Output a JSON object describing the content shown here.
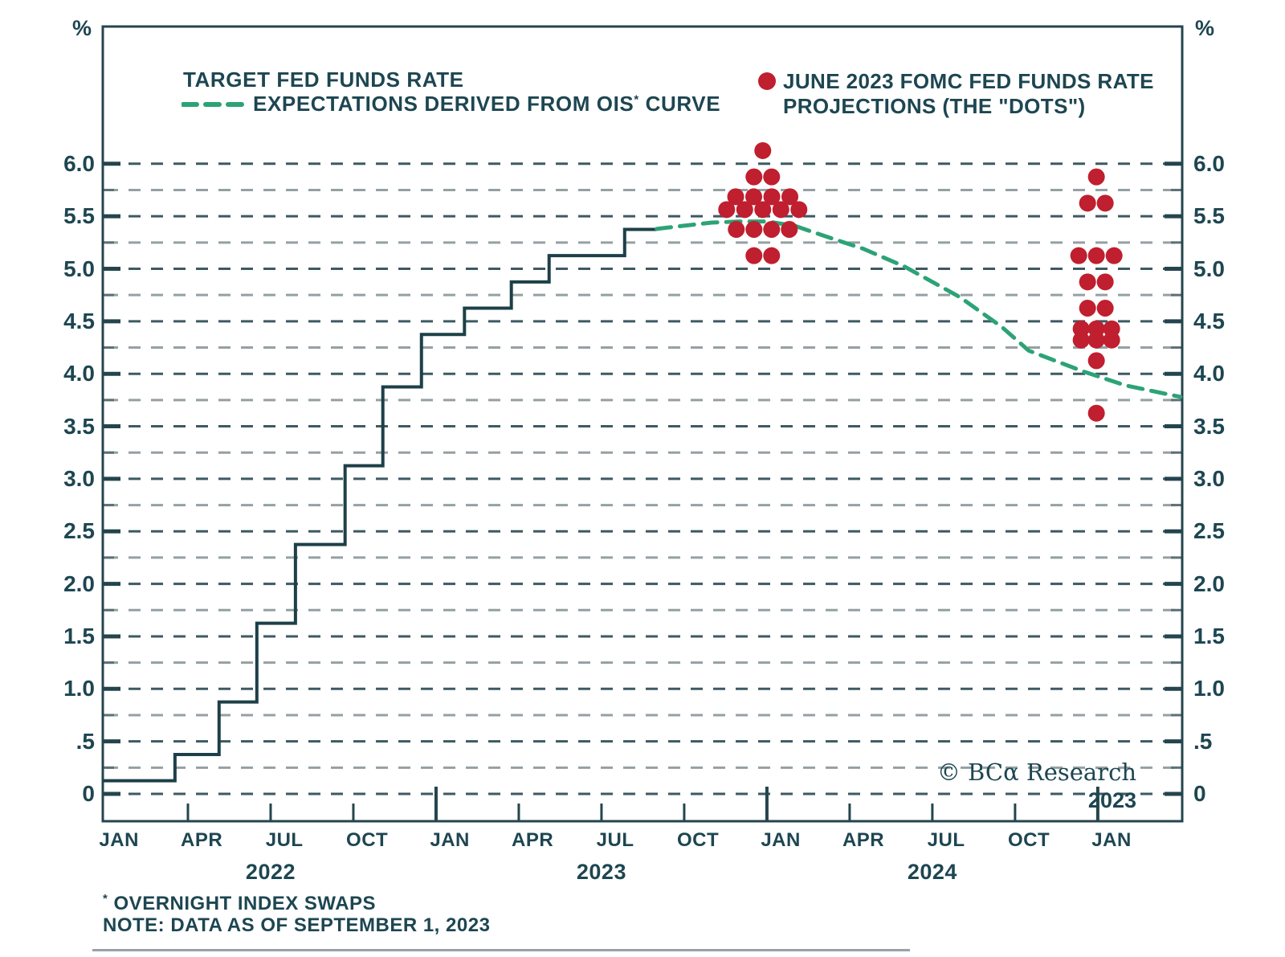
{
  "colors": {
    "text": "#1d4651",
    "border": "#24454d",
    "grid_major": "#3d5a62",
    "grid_minor": "#95a0a4",
    "step_line": "#1d4048",
    "ois_line": "#2ca377",
    "dots": "#bf1f2e",
    "background": "#ffffff"
  },
  "axes": {
    "percent_left": "%",
    "percent_right": "%",
    "y_ticks": [
      {
        "v": 6.0,
        "label": "6.0"
      },
      {
        "v": 5.5,
        "label": "5.5"
      },
      {
        "v": 5.0,
        "label": "5.0"
      },
      {
        "v": 4.5,
        "label": "4.5"
      },
      {
        "v": 4.0,
        "label": "4.0"
      },
      {
        "v": 3.5,
        "label": "3.5"
      },
      {
        "v": 3.0,
        "label": "3.0"
      },
      {
        "v": 2.5,
        "label": "2.5"
      },
      {
        "v": 2.0,
        "label": "2.0"
      },
      {
        "v": 1.5,
        "label": "1.5"
      },
      {
        "v": 1.0,
        "label": "1.0"
      },
      {
        "v": 0.5,
        "label": ".5"
      },
      {
        "v": 0.0,
        "label": "0"
      }
    ],
    "x_month_labels": [
      {
        "m": 0.5,
        "label": "JAN"
      },
      {
        "m": 3.5,
        "label": "APR"
      },
      {
        "m": 6.5,
        "label": "JUL"
      },
      {
        "m": 9.5,
        "label": "OCT"
      },
      {
        "m": 12.5,
        "label": "JAN"
      },
      {
        "m": 15.5,
        "label": "APR"
      },
      {
        "m": 18.5,
        "label": "JUL"
      },
      {
        "m": 21.5,
        "label": "OCT"
      },
      {
        "m": 24.5,
        "label": "JAN"
      },
      {
        "m": 27.5,
        "label": "APR"
      },
      {
        "m": 30.5,
        "label": "JUL"
      },
      {
        "m": 33.5,
        "label": "OCT"
      },
      {
        "m": 36.5,
        "label": "JAN"
      }
    ],
    "x_year_labels": [
      {
        "m": 6,
        "label": "2022"
      },
      {
        "m": 18,
        "label": "2023"
      },
      {
        "m": 30,
        "label": "2024"
      }
    ],
    "x_quarter_tick_months": [
      3,
      6,
      9,
      15,
      18,
      21,
      27,
      30,
      33
    ],
    "x_year_tick_months": [
      12,
      24,
      36
    ]
  },
  "legend": {
    "target_label": "TARGET FED FUNDS RATE",
    "ois_pre": "EXPECTATIONS DERIVED FROM OIS",
    "ois_sup": "*",
    "ois_post": " CURVE",
    "dots_line1": "JUNE 2023 FOMC FED FUNDS RATE",
    "dots_line2": "PROJECTIONS (THE \"DOTS\")"
  },
  "copyright": {
    "text": "© BCα Research ",
    "year": "2023"
  },
  "footnotes": {
    "fn1_sup": "*",
    "fn1_text": " OVERNIGHT INDEX SWAPS",
    "fn2": "NOTE: DATA AS OF SEPTEMBER 1, 2023"
  },
  "chart_data": {
    "type": "line",
    "title": "",
    "xlabel": "",
    "ylabel": "%",
    "ylim": [
      0,
      6.25
    ],
    "y_gridline_step": 0.25,
    "x_domain_months_from_jan2022": [
      0,
      39
    ],
    "grid": "dashed horizontal",
    "legend_position": "top-inside",
    "series": [
      {
        "name": "TARGET FED FUNDS RATE",
        "type": "step",
        "points": [
          {
            "date": "2022-01-01",
            "m": 0.0,
            "v": 0.125
          },
          {
            "date": "2022-03-17",
            "m": 2.53,
            "v": 0.375
          },
          {
            "date": "2022-05-05",
            "m": 4.13,
            "v": 0.875
          },
          {
            "date": "2022-06-16",
            "m": 5.5,
            "v": 1.625
          },
          {
            "date": "2022-07-28",
            "m": 6.9,
            "v": 2.375
          },
          {
            "date": "2022-09-22",
            "m": 8.7,
            "v": 3.125
          },
          {
            "date": "2022-11-03",
            "m": 10.07,
            "v": 3.875
          },
          {
            "date": "2022-12-15",
            "m": 11.47,
            "v": 4.375
          },
          {
            "date": "2023-02-02",
            "m": 13.03,
            "v": 4.625
          },
          {
            "date": "2023-03-23",
            "m": 14.73,
            "v": 4.875
          },
          {
            "date": "2023-05-04",
            "m": 16.1,
            "v": 5.125
          },
          {
            "date": "2023-07-27",
            "m": 18.84,
            "v": 5.375
          },
          {
            "date": "2023-09-01",
            "m": 20.0,
            "v": 5.375
          }
        ]
      },
      {
        "name": "EXPECTATIONS DERIVED FROM OIS* CURVE",
        "type": "dashed-line",
        "points": [
          {
            "m": 20.0,
            "v": 5.38
          },
          {
            "m": 21.0,
            "v": 5.41
          },
          {
            "m": 22.0,
            "v": 5.44
          },
          {
            "m": 23.0,
            "v": 5.45
          },
          {
            "m": 24.0,
            "v": 5.45
          },
          {
            "m": 25.0,
            "v": 5.41
          },
          {
            "m": 26.0,
            "v": 5.32
          },
          {
            "m": 27.5,
            "v": 5.19
          },
          {
            "m": 29.0,
            "v": 5.02
          },
          {
            "m": 31.0,
            "v": 4.73
          },
          {
            "m": 32.5,
            "v": 4.45
          },
          {
            "m": 33.5,
            "v": 4.22
          },
          {
            "m": 34.5,
            "v": 4.12
          },
          {
            "m": 35.5,
            "v": 4.02
          },
          {
            "m": 37.0,
            "v": 3.89
          },
          {
            "m": 39.0,
            "v": 3.78
          }
        ]
      },
      {
        "name": "JUNE 2023 FOMC FED FUNDS RATE PROJECTIONS (THE \"DOTS\")",
        "type": "dots",
        "clusters": [
          {
            "projection_year": "2023",
            "center_m": 23.85,
            "rows": [
              {
                "rate": 6.125,
                "count": 1
              },
              {
                "rate": 5.875,
                "count": 2
              },
              {
                "rate": 5.625,
                "count": 9,
                "split": [
                  4,
                  5
                ],
                "spacing": 22.5,
                "dy": 8
              },
              {
                "rate": 5.375,
                "count": 4
              },
              {
                "rate": 5.125,
                "count": 2
              }
            ]
          },
          {
            "projection_year": "2024",
            "center_m": 35.95,
            "rows": [
              {
                "rate": 5.875,
                "count": 1
              },
              {
                "rate": 5.625,
                "count": 2
              },
              {
                "rate": 5.125,
                "count": 3
              },
              {
                "rate": 4.875,
                "count": 2
              },
              {
                "rate": 4.625,
                "count": 2
              },
              {
                "rate": 4.375,
                "count": 6,
                "split": [
                  3,
                  3
                ],
                "spacing": 19,
                "dy": 7
              },
              {
                "rate": 4.125,
                "count": 1
              },
              {
                "rate": 3.625,
                "count": 1
              }
            ]
          }
        ]
      }
    ]
  }
}
